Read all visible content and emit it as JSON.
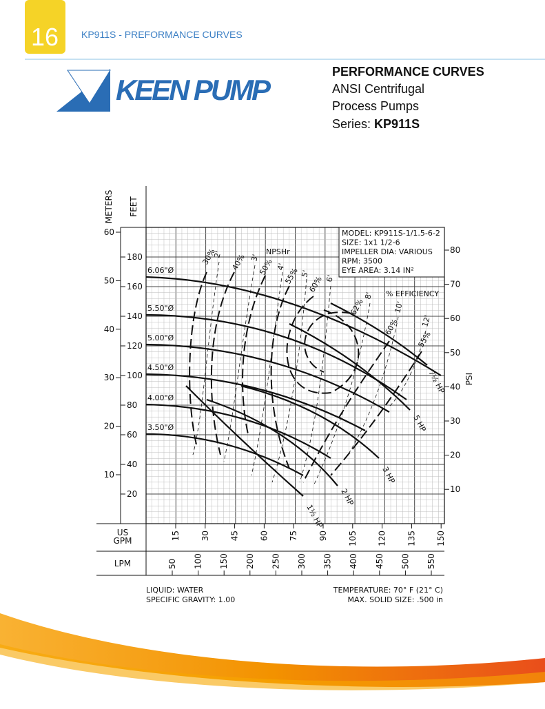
{
  "header": {
    "page_number": "16",
    "title": "KP911S - PREFORMANCE CURVES"
  },
  "logo": {
    "text": "KEEN PUMP"
  },
  "heading": {
    "title": "PERFORMANCE CURVES",
    "line1": "ANSI Centrifugal",
    "line2": "Process Pumps",
    "series_label": "Series:",
    "series": "KP911S"
  },
  "chart": {
    "meters_label": "METERS",
    "feet_label": "FEET",
    "psi_label": "PSI",
    "gpm_label": [
      "US",
      "GPM"
    ],
    "lpm_label": "LPM",
    "meters_ticks": [
      "60",
      "50",
      "40",
      "30",
      "20",
      "10"
    ],
    "feet_ticks": [
      "180",
      "160",
      "140",
      "120",
      "100",
      "80",
      "60",
      "40",
      "20"
    ],
    "psi_ticks": [
      "80",
      "70",
      "60",
      "50",
      "40",
      "30",
      "20",
      "10"
    ],
    "gpm_ticks": [
      "15",
      "30",
      "45",
      "60",
      "75",
      "90",
      "105",
      "120",
      "135",
      "150"
    ],
    "lpm_ticks": [
      "50",
      "100",
      "150",
      "200",
      "250",
      "300",
      "350",
      "400",
      "450",
      "500",
      "550"
    ],
    "info": [
      "MODEL: KP911S-1/1.5-6-2",
      "SIZE: 1x1 1/2-6",
      "IMPELLER DIA: VARIOUS",
      "RPM: 3500",
      "EYE AREA: 3.14 IN²"
    ],
    "impeller_labels": [
      "6.06\"Ø",
      "5.50\"Ø",
      "5.00\"Ø",
      "4.50\"Ø",
      "4.00\"Ø",
      "3.50\"Ø"
    ],
    "efficiency_title": "% EFFICIENCY",
    "efficiency_labels": [
      "30%",
      "40%",
      "50%",
      "55%",
      "60%",
      "62%",
      "60%",
      "55%"
    ],
    "npshr_title": "NPSHr",
    "npshr_labels": [
      "2'",
      "3'",
      "4'",
      "5'",
      "6'",
      "8'",
      "10'",
      "12'"
    ],
    "hp_labels": [
      "1½ HP",
      "2 HP",
      "3 HP",
      "5 HP",
      "7½ HP"
    ]
  },
  "footer": {
    "liquid": "LIQUID:  WATER",
    "gravity": "SPECIFIC GRAVITY:  1.00",
    "temperature": "TEMPERATURE:  70° F  (21° C)",
    "solid": "MAX. SOLID SIZE:  .500  in"
  }
}
